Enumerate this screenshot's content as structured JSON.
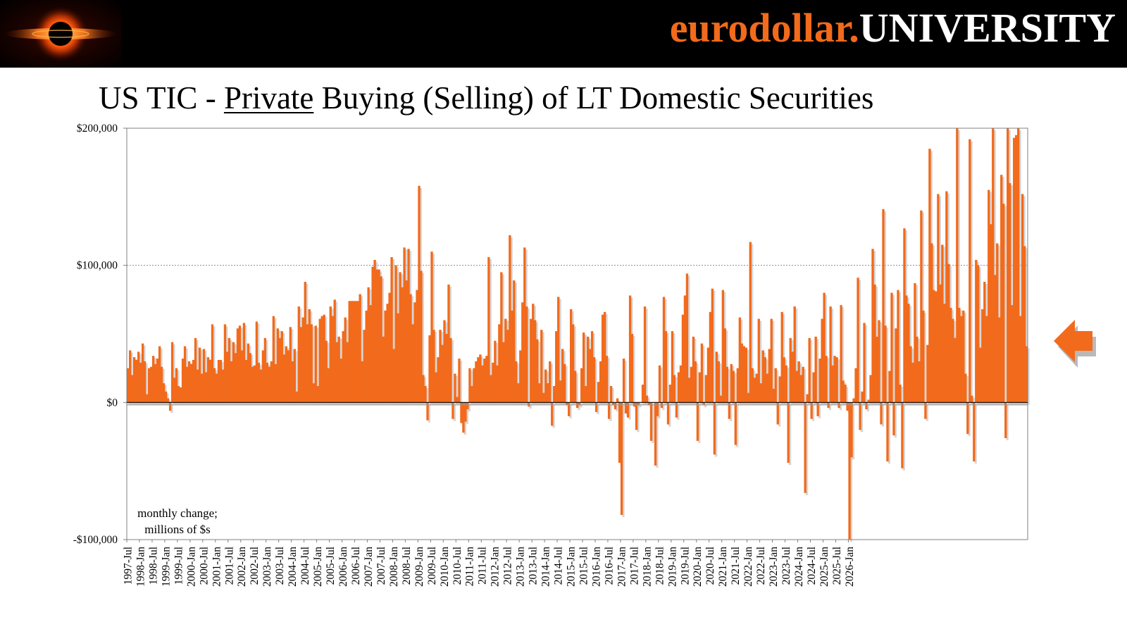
{
  "header": {
    "brand_part1": "eurodollar.",
    "brand_part2": "UNIVERSITY",
    "logo_name": "eurodollar-black-hole-logo"
  },
  "title": {
    "prefix": "US TIC - ",
    "underlined": "Private",
    "suffix": " Buying (Selling) of LT Domestic Securities"
  },
  "note": {
    "line1": "monthly change;",
    "line2": "millions of $s"
  },
  "colors": {
    "bar": "#f26a1b",
    "bar_shadow": "#b4b4b4",
    "arrow": "#f26a1b",
    "header_bg": "#000000"
  },
  "chart_data": {
    "type": "bar",
    "title": "US TIC - Private Buying (Selling) of LT Domestic Securities",
    "ylabel": "monthly change; millions of $s",
    "ylim": [
      -100000,
      200000
    ],
    "yticks": [
      200000,
      100000,
      0,
      -100000
    ],
    "ytick_labels": [
      "$200,000",
      "$100,000",
      "$0",
      "-$100,000"
    ],
    "grid": "horizontal dotted at $100,000",
    "start": "1997-Jul",
    "end": "2026-Jan",
    "x_tick_labels": [
      "1997-Jul",
      "1998-Jan",
      "1998-Jul",
      "1999-Jan",
      "1999-Jul",
      "2000-Jan",
      "2000-Jul",
      "2001-Jan",
      "2001-Jul",
      "2002-Jan",
      "2002-Jul",
      "2003-Jan",
      "2003-Jul",
      "2004-Jan",
      "2004-Jul",
      "2005-Jan",
      "2005-Jul",
      "2006-Jan",
      "2006-Jul",
      "2007-Jan",
      "2007-Jul",
      "2008-Jan",
      "2008-Jul",
      "2009-Jan",
      "2009-Jul",
      "2010-Jan",
      "2010-Jul",
      "2011-Jan",
      "2011-Jul",
      "2012-Jan",
      "2012-Jul",
      "2013-Jan",
      "2013-Jul",
      "2014-Jan",
      "2014-Jul",
      "2015-Jan",
      "2015-Jul",
      "2016-Jan",
      "2016-Jul",
      "2017-Jan",
      "2017-Jul",
      "2018-Jan",
      "2018-Jul",
      "2019-Jan",
      "2019-Jul",
      "2020-Jan",
      "2020-Jul",
      "2021-Jan",
      "2021-Jul",
      "2022-Jan",
      "2022-Jul",
      "2023-Jan",
      "2023-Jul",
      "2024-Jan",
      "2024-Jul",
      "2025-Jan",
      "2025-Jul",
      "2026-Jan"
    ],
    "values": [
      25000,
      38000,
      20000,
      33000,
      31000,
      37000,
      29000,
      43000,
      30000,
      6000,
      25000,
      26000,
      34000,
      28000,
      32000,
      41000,
      26000,
      14000,
      8000,
      3000,
      -6000,
      44000,
      18000,
      25000,
      12000,
      11000,
      32000,
      41000,
      26000,
      30000,
      28000,
      31000,
      47000,
      24000,
      40000,
      21000,
      39000,
      22000,
      33000,
      31000,
      57000,
      25000,
      21000,
      31000,
      31000,
      24000,
      57000,
      37000,
      47000,
      30000,
      44000,
      36000,
      54000,
      56000,
      38000,
      58000,
      31000,
      43000,
      36000,
      26000,
      27000,
      59000,
      29000,
      24000,
      38000,
      47000,
      29000,
      26000,
      30000,
      63000,
      28000,
      54000,
      47000,
      52000,
      35000,
      41000,
      38000,
      55000,
      30000,
      39000,
      8000,
      70000,
      55000,
      62000,
      88000,
      57000,
      68000,
      57000,
      14000,
      56000,
      12000,
      61000,
      63000,
      64000,
      45000,
      25000,
      70000,
      63000,
      75000,
      44000,
      48000,
      32000,
      52000,
      62000,
      44000,
      74000,
      74000,
      74000,
      74000,
      74000,
      79000,
      30000,
      53000,
      67000,
      84000,
      71000,
      99000,
      104000,
      97000,
      97000,
      92000,
      48000,
      67000,
      72000,
      80000,
      106000,
      39000,
      100000,
      65000,
      95000,
      84000,
      113000,
      89000,
      112000,
      79000,
      57000,
      73000,
      82000,
      158000,
      96000,
      20000,
      12000,
      -13000,
      49000,
      110000,
      53000,
      22000,
      33000,
      53000,
      42000,
      60000,
      50000,
      86000,
      47000,
      -12000,
      21000,
      4000,
      32000,
      -15000,
      -22000,
      -14000,
      -5000,
      25000,
      12000,
      25000,
      30000,
      33000,
      35000,
      27000,
      32000,
      34000,
      106000,
      20000,
      29000,
      45000,
      27000,
      57000,
      95000,
      44000,
      61000,
      53000,
      122000,
      67000,
      89000,
      30000,
      14000,
      38000,
      73000,
      113000,
      70000,
      -3000,
      61000,
      72000,
      60000,
      46000,
      14000,
      53000,
      7000,
      24000,
      14000,
      30000,
      -17000,
      12000,
      52000,
      77000,
      16000,
      39000,
      28000,
      -2000,
      -10000,
      68000,
      57000,
      23000,
      -4000,
      -2000,
      25000,
      51000,
      12000,
      48000,
      39000,
      52000,
      33000,
      -7000,
      15000,
      30000,
      64000,
      66000,
      34000,
      -12000,
      12000,
      -2000,
      -5000,
      3000,
      -44000,
      -82000,
      32000,
      -8000,
      -11000,
      78000,
      50000,
      -3000,
      -20000,
      -2000,
      0,
      13000,
      70000,
      5000,
      -2000,
      -28000,
      0,
      -46000,
      -10000,
      27000,
      -4000,
      77000,
      52000,
      -16000,
      13000,
      52000,
      20000,
      -11000,
      22000,
      27000,
      64000,
      78000,
      94000,
      18000,
      26000,
      48000,
      30000,
      -28000,
      22000,
      43000,
      -2000,
      20000,
      40000,
      66000,
      83000,
      -38000,
      37000,
      30000,
      5000,
      82000,
      54000,
      26000,
      -12000,
      28000,
      23000,
      -31000,
      25000,
      62000,
      43000,
      41000,
      40000,
      7000,
      117000,
      25000,
      18000,
      21000,
      61000,
      14000,
      38000,
      33000,
      21000,
      39000,
      61000,
      10000,
      25000,
      -16000,
      19000,
      66000,
      33000,
      27000,
      -44000,
      47000,
      37000,
      70000,
      23000,
      30000,
      20000,
      26000,
      -66000,
      6000,
      47000,
      -12000,
      22000,
      48000,
      -10000,
      32000,
      61000,
      80000,
      34000,
      -4000,
      70000,
      27000,
      34000,
      33000,
      -4000,
      71000,
      16000,
      13000,
      -6000,
      -103000,
      -40000,
      3000,
      25000,
      91000,
      -20000,
      8000,
      58000,
      -5000,
      2000,
      20000,
      112000,
      86000,
      48000,
      60000,
      -16000,
      141000,
      56000,
      -43000,
      23000,
      80000,
      -24000,
      54000,
      82000,
      13000,
      -48000,
      127000,
      78000,
      72000,
      41000,
      29000,
      87000,
      48000,
      30000,
      140000,
      67000,
      -12000,
      42000,
      185000,
      116000,
      82000,
      81000,
      152000,
      86000,
      115000,
      72000,
      154000,
      101000,
      69000,
      61000,
      47000,
      200000,
      69000,
      63000,
      67000,
      21000,
      -23000,
      192000,
      5000,
      -43000,
      104000,
      100000,
      40000,
      68000,
      88000,
      63000,
      155000,
      130000,
      200000,
      93000,
      116000,
      62000,
      166000,
      145000,
      -26000,
      200000,
      160000,
      71000,
      193000,
      195000,
      200000,
      63000,
      152000,
      114000,
      41000
    ]
  }
}
